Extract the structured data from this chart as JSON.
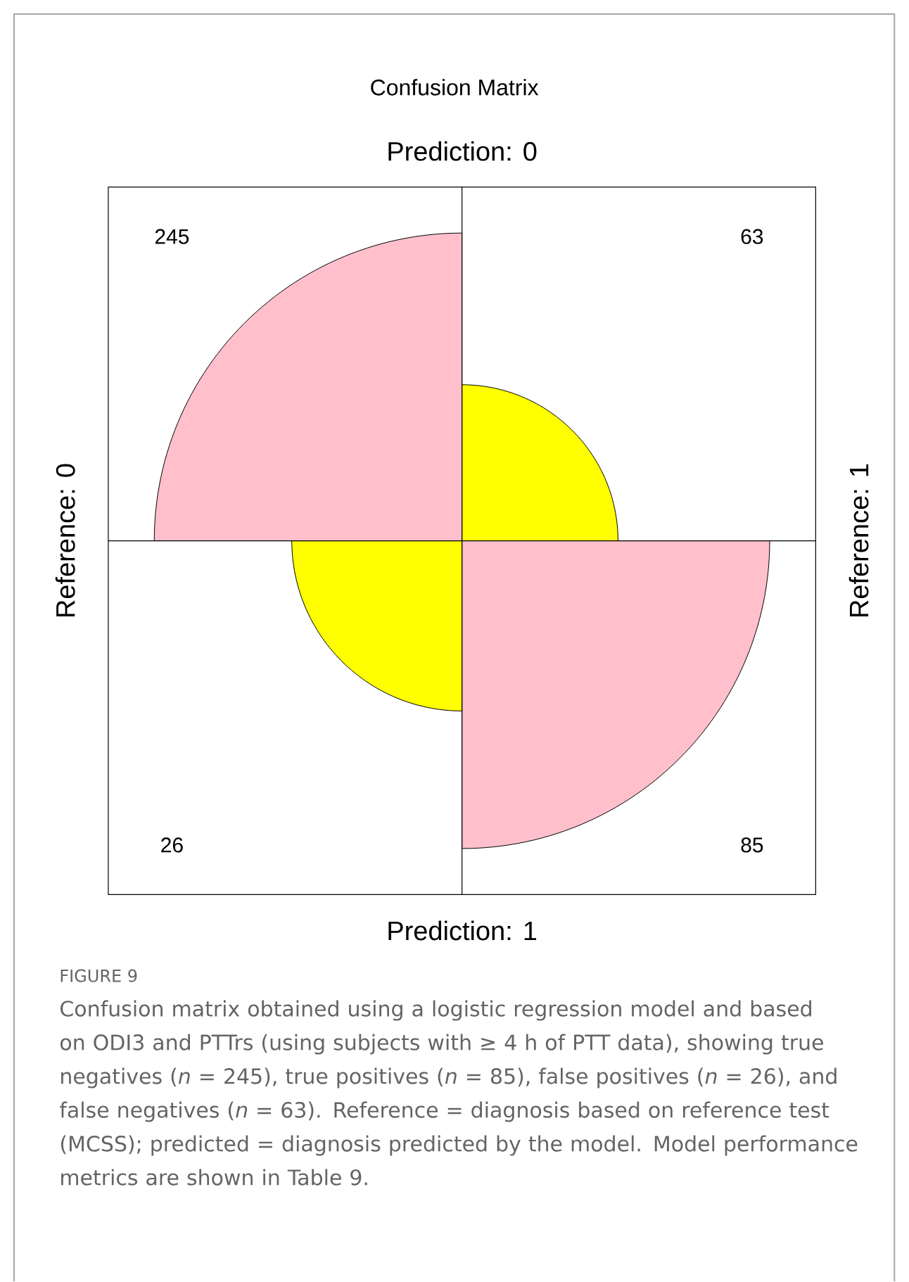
{
  "chart_data": {
    "type": "other",
    "title": "Confusion Matrix",
    "x2label": "Prediction: 0",
    "xlabel": "Prediction: 1",
    "ylabel": "Reference: 0",
    "y2label": "Reference: 1",
    "values": [
      245,
      63,
      26,
      85
    ],
    "colors": [
      "#ffc0cb",
      "#ffff00",
      "#ffff00",
      "#ffc0cb"
    ],
    "data_labels": true,
    "annotations": [
      "FIGURE 9",
      "Confusion matrix obtained using a logistic regression model and based on ODI3 and PTTrs (using subjects with ≥ 4 h of PTT data), showing true negatives (*n* = 245), true positives (*n* = 85), false positives (*n* = 26), and false negatives (*n* = 63). Reference = diagnosis based on reference test (MCSS); predicted = diagnosis predicted by the model. Model performance metrics are shown in Table 9."
    ]
  }
}
